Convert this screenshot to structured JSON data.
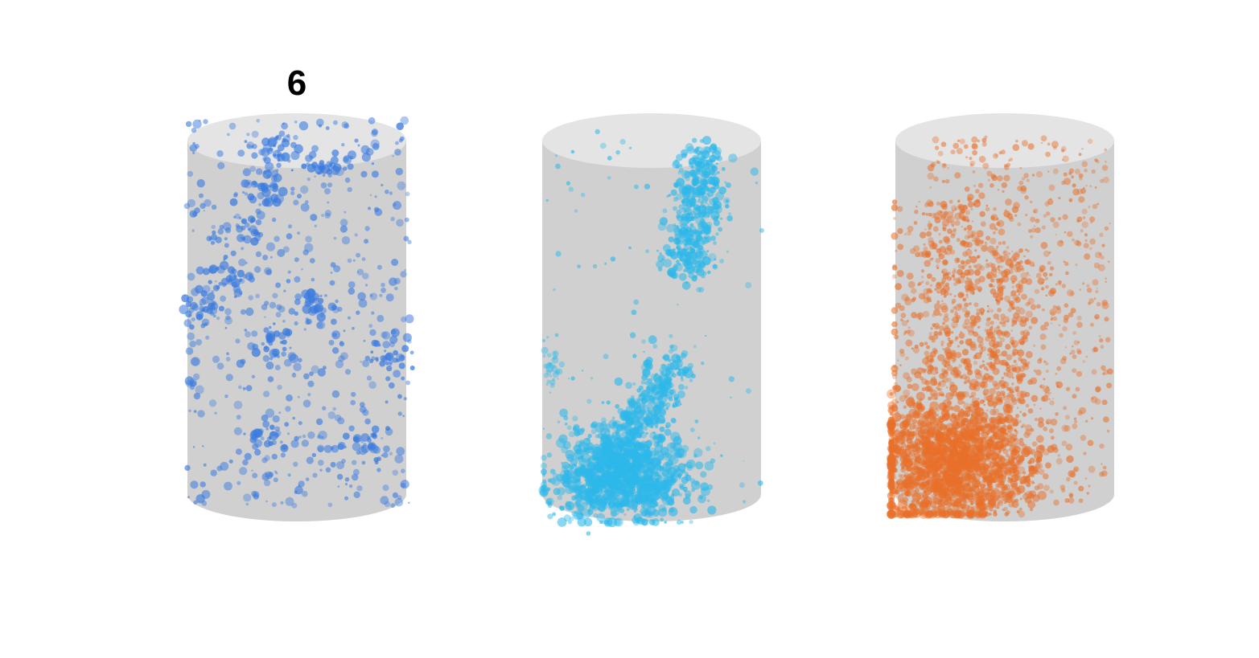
{
  "figure": {
    "panel_label": "6",
    "background": "#ffffff",
    "cylinder_side_color": "#d0d0d0",
    "cylinder_cap_color": "#e4e4e4"
  },
  "cylinders": [
    {
      "id": "left",
      "point_color": "#3a7be0",
      "distribution": "uniform-sparse"
    },
    {
      "id": "middle",
      "point_color": "#2db8ea",
      "distribution": "clustered-bottom-left-and-top-right"
    },
    {
      "id": "right",
      "point_color": "#e8702a",
      "distribution": "dense-bottom-left-rising"
    }
  ]
}
